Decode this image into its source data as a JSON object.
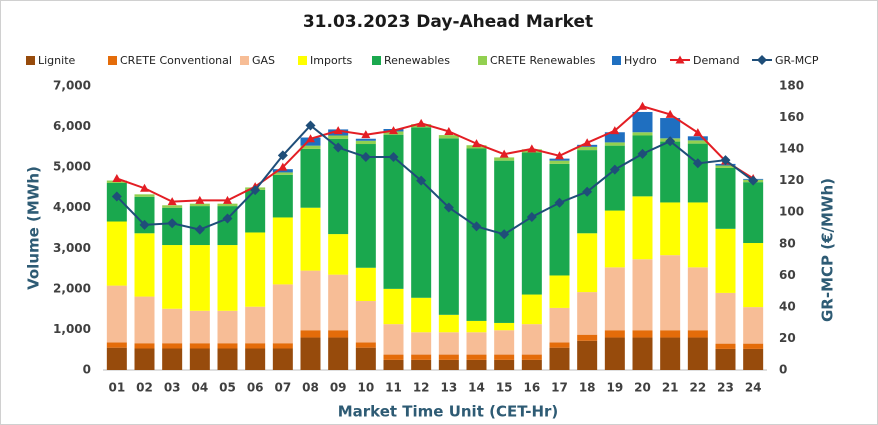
{
  "chart_data": {
    "type": "bar",
    "stacked": true,
    "title": "31.03.2023  Day-Ahead Market",
    "x_label": "Market Time Unit (CET-Hr)",
    "y_label": "Volume (MWh)",
    "y2_label": "GR-MCP (€/MWh)",
    "categories": [
      "01",
      "02",
      "03",
      "04",
      "05",
      "06",
      "07",
      "08",
      "09",
      "10",
      "11",
      "12",
      "13",
      "14",
      "15",
      "16",
      "17",
      "18",
      "19",
      "20",
      "21",
      "22",
      "23",
      "24"
    ],
    "ylim": [
      0,
      7000
    ],
    "yticks": [
      0,
      {
        "value": 1000,
        "label": "1,000"
      },
      {
        "value": 2000,
        "label": "2,000"
      },
      {
        "value": 3000,
        "label": "3,000"
      },
      {
        "value": 4000,
        "label": "4,000"
      },
      {
        "value": 5000,
        "label": "5,000"
      },
      {
        "value": 6000,
        "label": "6,000"
      },
      {
        "value": 7000,
        "label": "7,000"
      }
    ],
    "y2lim": [
      0,
      180
    ],
    "y2ticks": [
      0,
      20,
      40,
      60,
      80,
      100,
      120,
      140,
      160,
      180
    ],
    "legend": "top",
    "series": [
      {
        "name": "Lignite",
        "type": "bar",
        "color": "#974b0c",
        "values": [
          550,
          530,
          530,
          530,
          530,
          530,
          530,
          800,
          800,
          550,
          250,
          250,
          250,
          250,
          250,
          250,
          550,
          720,
          800,
          800,
          800,
          800,
          520,
          520
        ]
      },
      {
        "name": "CRETE Conventional",
        "type": "bar",
        "color": "#e46c0a",
        "values": [
          130,
          130,
          130,
          130,
          130,
          130,
          130,
          180,
          180,
          130,
          130,
          130,
          130,
          130,
          130,
          130,
          130,
          150,
          180,
          180,
          180,
          180,
          130,
          130
        ]
      },
      {
        "name": "GAS",
        "type": "bar",
        "color": "#f7bd96",
        "values": [
          1400,
          1150,
          850,
          800,
          800,
          900,
          1450,
          1470,
          1370,
          1020,
          750,
          550,
          550,
          550,
          600,
          750,
          850,
          1050,
          1550,
          1750,
          1850,
          1550,
          1250,
          900
        ]
      },
      {
        "name": "Imports",
        "type": "bar",
        "color": "#ffff00",
        "values": [
          1580,
          1560,
          1570,
          1620,
          1620,
          1830,
          1650,
          1550,
          1000,
          820,
          870,
          850,
          430,
          280,
          180,
          730,
          800,
          1450,
          1400,
          1550,
          1300,
          1600,
          1580,
          1580
        ]
      },
      {
        "name": "Renewables",
        "type": "bar",
        "color": "#1aa84e",
        "values": [
          950,
          900,
          920,
          960,
          960,
          1050,
          1050,
          1450,
          2350,
          3050,
          3800,
          4200,
          4350,
          4250,
          4000,
          3500,
          2750,
          2050,
          1600,
          1500,
          1500,
          1450,
          1500,
          1500
        ]
      },
      {
        "name": "CRETE Renewables",
        "type": "bar",
        "color": "#92d050",
        "values": [
          60,
          60,
          60,
          60,
          60,
          60,
          60,
          80,
          80,
          80,
          80,
          80,
          80,
          80,
          80,
          80,
          80,
          80,
          80,
          80,
          80,
          80,
          60,
          60
        ]
      },
      {
        "name": "Hydro",
        "type": "bar",
        "color": "#1f6fc0",
        "values": [
          0,
          0,
          0,
          0,
          0,
          0,
          80,
          200,
          150,
          50,
          60,
          0,
          0,
          0,
          0,
          0,
          50,
          50,
          250,
          500,
          500,
          100,
          40,
          20
        ]
      },
      {
        "name": "Demand",
        "type": "line",
        "color": "#e31e24",
        "marker": "triangle",
        "values": [
          4720,
          4480,
          4150,
          4180,
          4180,
          4520,
          5000,
          5700,
          5900,
          5800,
          5900,
          6080,
          5880,
          5580,
          5320,
          5450,
          5280,
          5600,
          5900,
          6500,
          6300,
          5850,
          5150,
          4720
        ]
      },
      {
        "name": "GR-MCP",
        "type": "line",
        "axis": "y2",
        "color": "#1f4e79",
        "marker": "diamond",
        "values": [
          110,
          92,
          93,
          89,
          96,
          114,
          136,
          155,
          141,
          135,
          135,
          120,
          103,
          91,
          86,
          97,
          106,
          113,
          127,
          137,
          145,
          131,
          133,
          120
        ]
      }
    ]
  }
}
